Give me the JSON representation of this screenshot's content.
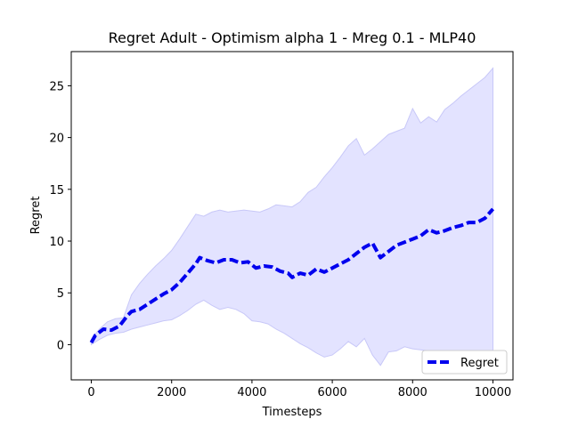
{
  "chart_data": {
    "type": "line",
    "title": "Regret Adult - Optimism alpha 1 - Mreg 0.1 - MLP40",
    "xlabel": "Timesteps",
    "ylabel": "Regret",
    "xlim": [
      -500,
      10500
    ],
    "ylim": [
      -3.4,
      28.3
    ],
    "xticks": [
      0,
      2000,
      4000,
      6000,
      8000,
      10000
    ],
    "xtick_labels": [
      "0",
      "2000",
      "4000",
      "6000",
      "8000",
      "10000"
    ],
    "yticks": [
      0,
      5,
      10,
      15,
      20,
      25
    ],
    "ytick_labels": [
      "0",
      "5",
      "10",
      "15",
      "20",
      "25"
    ],
    "grid": false,
    "legend": {
      "placement": "lower-right",
      "entries": [
        "Regret"
      ]
    },
    "colors": {
      "line": "#0000ee",
      "band": "#e3e3ff",
      "band_edge": "#c8c8f8"
    },
    "series": [
      {
        "name": "Regret",
        "style": "dashed",
        "x": [
          0,
          100,
          300,
          500,
          700,
          900,
          1000,
          1200,
          1400,
          1600,
          1800,
          2000,
          2200,
          2400,
          2600,
          2700,
          2900,
          3100,
          3300,
          3500,
          3700,
          3900,
          4100,
          4300,
          4500,
          4700,
          4900,
          5000,
          5200,
          5400,
          5600,
          5800,
          6000,
          6200,
          6400,
          6600,
          6800,
          7000,
          7200,
          7400,
          7600,
          7800,
          8000,
          8200,
          8400,
          8600,
          8800,
          9000,
          9200,
          9400,
          9600,
          9800,
          10000
        ],
        "values": [
          0.2,
          0.9,
          1.5,
          1.4,
          1.8,
          2.8,
          3.2,
          3.4,
          3.9,
          4.4,
          4.9,
          5.3,
          6.0,
          6.9,
          7.8,
          8.4,
          8.1,
          7.9,
          8.2,
          8.2,
          7.9,
          8.0,
          7.4,
          7.6,
          7.5,
          7.1,
          6.9,
          6.5,
          6.9,
          6.7,
          7.3,
          7.0,
          7.4,
          7.8,
          8.2,
          8.8,
          9.4,
          9.8,
          8.4,
          9.0,
          9.6,
          9.9,
          10.2,
          10.5,
          11.1,
          10.8,
          11.0,
          11.3,
          11.5,
          11.8,
          11.8,
          12.2,
          13.1
        ]
      }
    ],
    "band": {
      "x": [
        0,
        200,
        400,
        600,
        800,
        1000,
        1200,
        1400,
        1600,
        1800,
        2000,
        2200,
        2400,
        2600,
        2800,
        3000,
        3200,
        3400,
        3600,
        3800,
        4000,
        4200,
        4400,
        4600,
        4800,
        5000,
        5200,
        5400,
        5600,
        5800,
        6000,
        6200,
        6400,
        6600,
        6800,
        7000,
        7200,
        7400,
        7600,
        7800,
        8000,
        8200,
        8400,
        8600,
        8800,
        9000,
        9200,
        9400,
        9600,
        9800,
        10000
      ],
      "upper": [
        0.5,
        1.5,
        2.2,
        2.5,
        2.6,
        4.8,
        5.9,
        6.8,
        7.6,
        8.3,
        9.1,
        10.2,
        11.4,
        12.6,
        12.4,
        12.8,
        13.0,
        12.8,
        12.9,
        13.0,
        12.9,
        12.8,
        13.1,
        13.5,
        13.4,
        13.3,
        13.8,
        14.7,
        15.2,
        16.2,
        17.1,
        18.1,
        19.2,
        19.9,
        18.3,
        18.9,
        19.6,
        20.3,
        20.6,
        20.9,
        22.8,
        21.4,
        22.0,
        21.5,
        22.7,
        23.3,
        24.0,
        24.6,
        25.2,
        25.8,
        26.7
      ],
      "lower": [
        0.0,
        0.5,
        0.9,
        1.1,
        1.2,
        1.5,
        1.7,
        1.9,
        2.1,
        2.3,
        2.4,
        2.8,
        3.3,
        3.9,
        4.3,
        3.8,
        3.4,
        3.6,
        3.4,
        3.0,
        2.3,
        2.2,
        2.0,
        1.5,
        1.1,
        0.6,
        0.1,
        -0.3,
        -0.8,
        -1.2,
        -1.0,
        -0.4,
        0.3,
        -0.2,
        0.6,
        -1.0,
        -2.0,
        -0.7,
        -0.6,
        -0.2,
        -0.4,
        -0.5,
        -0.6,
        -0.6,
        -0.7,
        -0.7,
        -0.7,
        -0.7,
        -0.7,
        -0.7,
        -0.7
      ]
    }
  }
}
